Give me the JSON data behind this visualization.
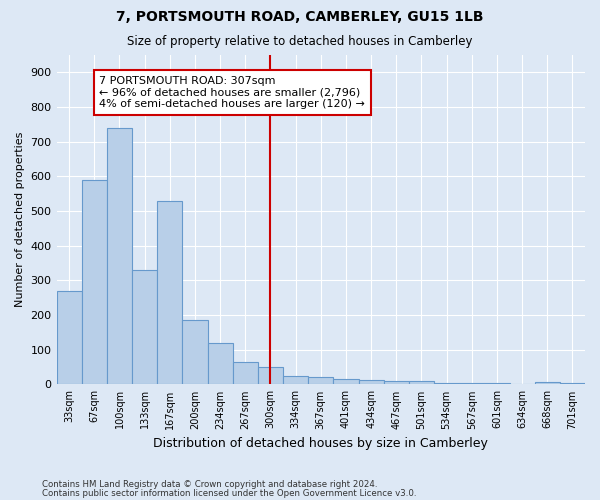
{
  "title": "7, PORTSMOUTH ROAD, CAMBERLEY, GU15 1LB",
  "subtitle": "Size of property relative to detached houses in Camberley",
  "xlabel": "Distribution of detached houses by size in Camberley",
  "ylabel": "Number of detached properties",
  "categories": [
    "33sqm",
    "67sqm",
    "100sqm",
    "133sqm",
    "167sqm",
    "200sqm",
    "234sqm",
    "267sqm",
    "300sqm",
    "334sqm",
    "367sqm",
    "401sqm",
    "434sqm",
    "467sqm",
    "501sqm",
    "534sqm",
    "567sqm",
    "601sqm",
    "634sqm",
    "668sqm",
    "701sqm"
  ],
  "values": [
    270,
    590,
    740,
    330,
    530,
    185,
    120,
    65,
    50,
    25,
    20,
    17,
    12,
    10,
    10,
    5,
    3,
    3,
    0,
    8,
    3
  ],
  "bar_color": "#b8cfe8",
  "bar_edge_color": "#6699cc",
  "background_color": "#dde8f5",
  "grid_color": "#ffffff",
  "vline_x": 8,
  "vline_color": "#cc0000",
  "annotation_text": "7 PORTSMOUTH ROAD: 307sqm\n← 96% of detached houses are smaller (2,796)\n4% of semi-detached houses are larger (120) →",
  "annotation_box_color": "#ffffff",
  "annotation_box_edge": "#cc0000",
  "ylim": [
    0,
    950
  ],
  "yticks": [
    0,
    100,
    200,
    300,
    400,
    500,
    600,
    700,
    800,
    900
  ],
  "footnote1": "Contains HM Land Registry data © Crown copyright and database right 2024.",
  "footnote2": "Contains public sector information licensed under the Open Government Licence v3.0."
}
